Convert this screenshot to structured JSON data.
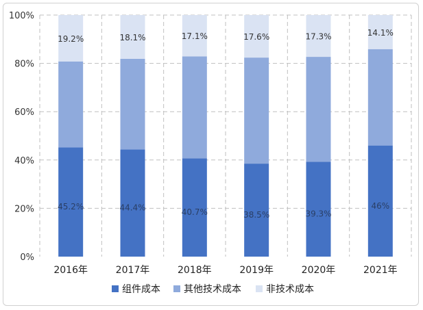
{
  "chart_data": {
    "type": "bar",
    "stacked": true,
    "percent_stacked": true,
    "title": "",
    "xlabel": "",
    "ylabel": "",
    "ylim": [
      0,
      100
    ],
    "yticks": [
      "0%",
      "20%",
      "40%",
      "60%",
      "80%",
      "100%"
    ],
    "categories": [
      "2016年",
      "2017年",
      "2018年",
      "2019年",
      "2020年",
      "2021年"
    ],
    "series": [
      {
        "name": "组件成本",
        "values": [
          45.2,
          44.4,
          40.7,
          38.5,
          39.3,
          46
        ],
        "labels": [
          "45.2%",
          "44.4%",
          "40.7%",
          "38.5%",
          "39.3%",
          "46%"
        ],
        "color": "#4472c4"
      },
      {
        "name": "其他技术成本",
        "values": [
          35.6,
          37.5,
          42.2,
          43.9,
          43.4,
          39.9
        ],
        "color": "#8faadc"
      },
      {
        "name": "非技术成本",
        "values": [
          19.2,
          18.1,
          17.1,
          17.6,
          17.3,
          14.1
        ],
        "labels": [
          "19.2%",
          "18.1%",
          "17.1%",
          "17.6%",
          "17.3%",
          "14.1%"
        ],
        "color": "#dae3f3"
      }
    ],
    "grid": true,
    "legend": "bottom"
  }
}
